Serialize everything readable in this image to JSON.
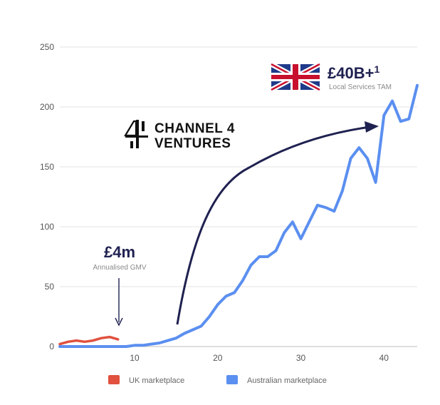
{
  "chart_data": {
    "type": "line",
    "title": "",
    "xlabel": "",
    "ylabel": "",
    "xlim": [
      1,
      44
    ],
    "ylim": [
      0,
      250
    ],
    "x_ticks": [
      10,
      20,
      30,
      40
    ],
    "y_ticks": [
      0,
      50,
      100,
      150,
      200,
      250
    ],
    "grid": true,
    "legend_position": "bottom",
    "series": [
      {
        "name": "UK marketplace",
        "color": "#e0513f",
        "x": [
          1,
          2,
          3,
          4,
          5,
          6,
          7,
          8
        ],
        "y": [
          2,
          4,
          5,
          4,
          5,
          7,
          8,
          6
        ]
      },
      {
        "name": "Australian marketplace",
        "color": "#5b8ff0",
        "x": [
          1,
          2,
          3,
          4,
          5,
          6,
          7,
          8,
          9,
          10,
          11,
          12,
          13,
          14,
          15,
          16,
          17,
          18,
          19,
          20,
          21,
          22,
          23,
          24,
          25,
          26,
          27,
          28,
          29,
          30,
          31,
          32,
          33,
          34,
          35,
          36,
          37,
          38,
          39,
          40,
          41,
          42,
          43,
          44
        ],
        "y": [
          0,
          0,
          0,
          0,
          0,
          0,
          0,
          0,
          0,
          1,
          1,
          2,
          3,
          5,
          7,
          11,
          14,
          17,
          25,
          35,
          42,
          45,
          55,
          68,
          75,
          75,
          80,
          95,
          104,
          90,
          104,
          118,
          116,
          113,
          130,
          157,
          166,
          157,
          137,
          193,
          205,
          188,
          190,
          218
        ]
      }
    ],
    "annotations": {
      "uk_value": "£4m",
      "uk_caption": "Annualised GMV",
      "tam_value": "£40B+",
      "tam_superscript": "1",
      "tam_caption": "Local Services TAM",
      "brand_line1": "CHANNEL 4",
      "brand_line2": "VENTURES"
    }
  },
  "icons": {
    "flag": "uk-flag-icon",
    "logo": "channel-4-logo-icon",
    "arrow": "curved-arrow-icon"
  }
}
